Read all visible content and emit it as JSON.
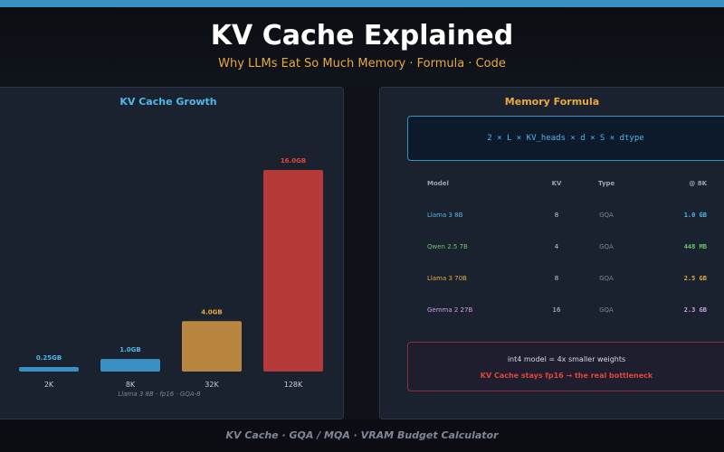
{
  "header": {
    "title": "KV Cache Explained",
    "subtitle": "Why LLMs Eat So Much Memory  ·  Formula  ·  Code"
  },
  "colors": {
    "accent_blue": "#4fb8ea",
    "accent_orange": "#e8a940",
    "accent_red": "#e0453e",
    "accent_green": "#6cc46c",
    "accent_purple": "#d79be6"
  },
  "chart_data": {
    "type": "bar",
    "title": "KV Cache Growth",
    "categories": [
      "2K",
      "8K",
      "32K",
      "128K"
    ],
    "values": [
      0.25,
      1.0,
      4.0,
      16.0
    ],
    "data_labels": [
      "0.25GB",
      "1.0GB",
      "4.0GB",
      "16.0GB"
    ],
    "bar_colors": [
      "#3a8fc4",
      "#3a8fc4",
      "#b8863e",
      "#b53a37"
    ],
    "label_colors": [
      "#4fb8ea",
      "#4fb8ea",
      "#e8a940",
      "#e0453e"
    ],
    "caption": "Llama 3 8B · fp16 · GQA-8",
    "ylim": [
      0,
      16
    ],
    "grid": false,
    "legend": false
  },
  "formula": {
    "title": "Memory Formula",
    "text": "2 × L × KV_heads × d × S × dtype"
  },
  "table": {
    "headers": {
      "model": "Model",
      "kv": "KV",
      "type": "Type",
      "size": "@ 8K"
    },
    "rows": [
      {
        "model": "Llama 3 8B",
        "kv": "8",
        "type": "GQA",
        "size": "1.0 GB",
        "color": "#4fb8ea"
      },
      {
        "model": "Qwen 2.5 7B",
        "kv": "4",
        "type": "GQA",
        "size": "448 MB",
        "color": "#6cc46c"
      },
      {
        "model": "Llama 3 70B",
        "kv": "8",
        "type": "GQA",
        "size": "2.5 GB",
        "color": "#e8a940"
      },
      {
        "model": "Gemma 2 27B",
        "kv": "16",
        "type": "GQA",
        "size": "2.3 GB",
        "color": "#d79be6"
      }
    ]
  },
  "note": {
    "line1": "int4 model = 4x smaller weights",
    "line2": "KV Cache stays fp16 → the real bottleneck"
  },
  "footer": {
    "text": "KV Cache  ·  GQA / MQA  ·  VRAM Budget Calculator"
  }
}
